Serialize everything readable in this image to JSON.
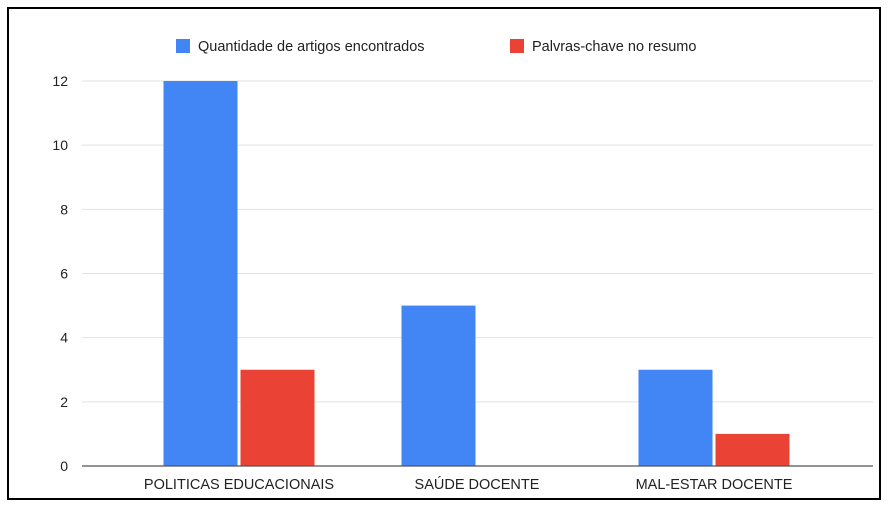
{
  "chart_data": {
    "type": "bar",
    "title": "",
    "xlabel": "",
    "ylabel": "",
    "categories": [
      "POLITICAS EDUCACIONAIS",
      "SAÚDE DOCENTE",
      "MAL-ESTAR DOCENTE"
    ],
    "series": [
      {
        "name": "Quantidade de artigos encontrados",
        "values": [
          12,
          5,
          3
        ],
        "color": "#4285F4"
      },
      {
        "name": "Palvras-chave no resumo",
        "values": [
          3,
          0,
          1
        ],
        "color": "#EA4335"
      }
    ],
    "ylim": [
      0,
      12
    ],
    "yticks": [
      "0",
      "2",
      "4",
      "6",
      "8",
      "10",
      "12"
    ],
    "grid": true,
    "legend_position": "top"
  }
}
